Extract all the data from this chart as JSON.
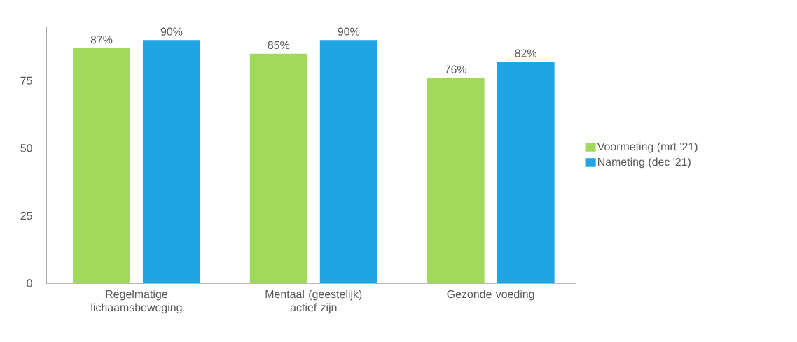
{
  "chart_data": {
    "type": "bar",
    "categories": [
      "Regelmatige lichaamsbeweging",
      "Mentaal (geestelijk) actief zijn",
      "Gezonde voeding"
    ],
    "series": [
      {
        "name": "Voormeting (mrt '21)",
        "color": "#a3d95b",
        "values": [
          87,
          85,
          76
        ],
        "value_labels": [
          "87%",
          "85%",
          "76%"
        ]
      },
      {
        "name": "Nameting (dec '21)",
        "color": "#1fa4e6",
        "values": [
          90,
          90,
          82
        ],
        "value_labels": [
          "90%",
          "90%",
          "82%"
        ]
      }
    ],
    "ylim": [
      0,
      95
    ],
    "yticks": [
      0,
      25,
      50,
      75
    ],
    "grid": false,
    "legend": "right"
  }
}
